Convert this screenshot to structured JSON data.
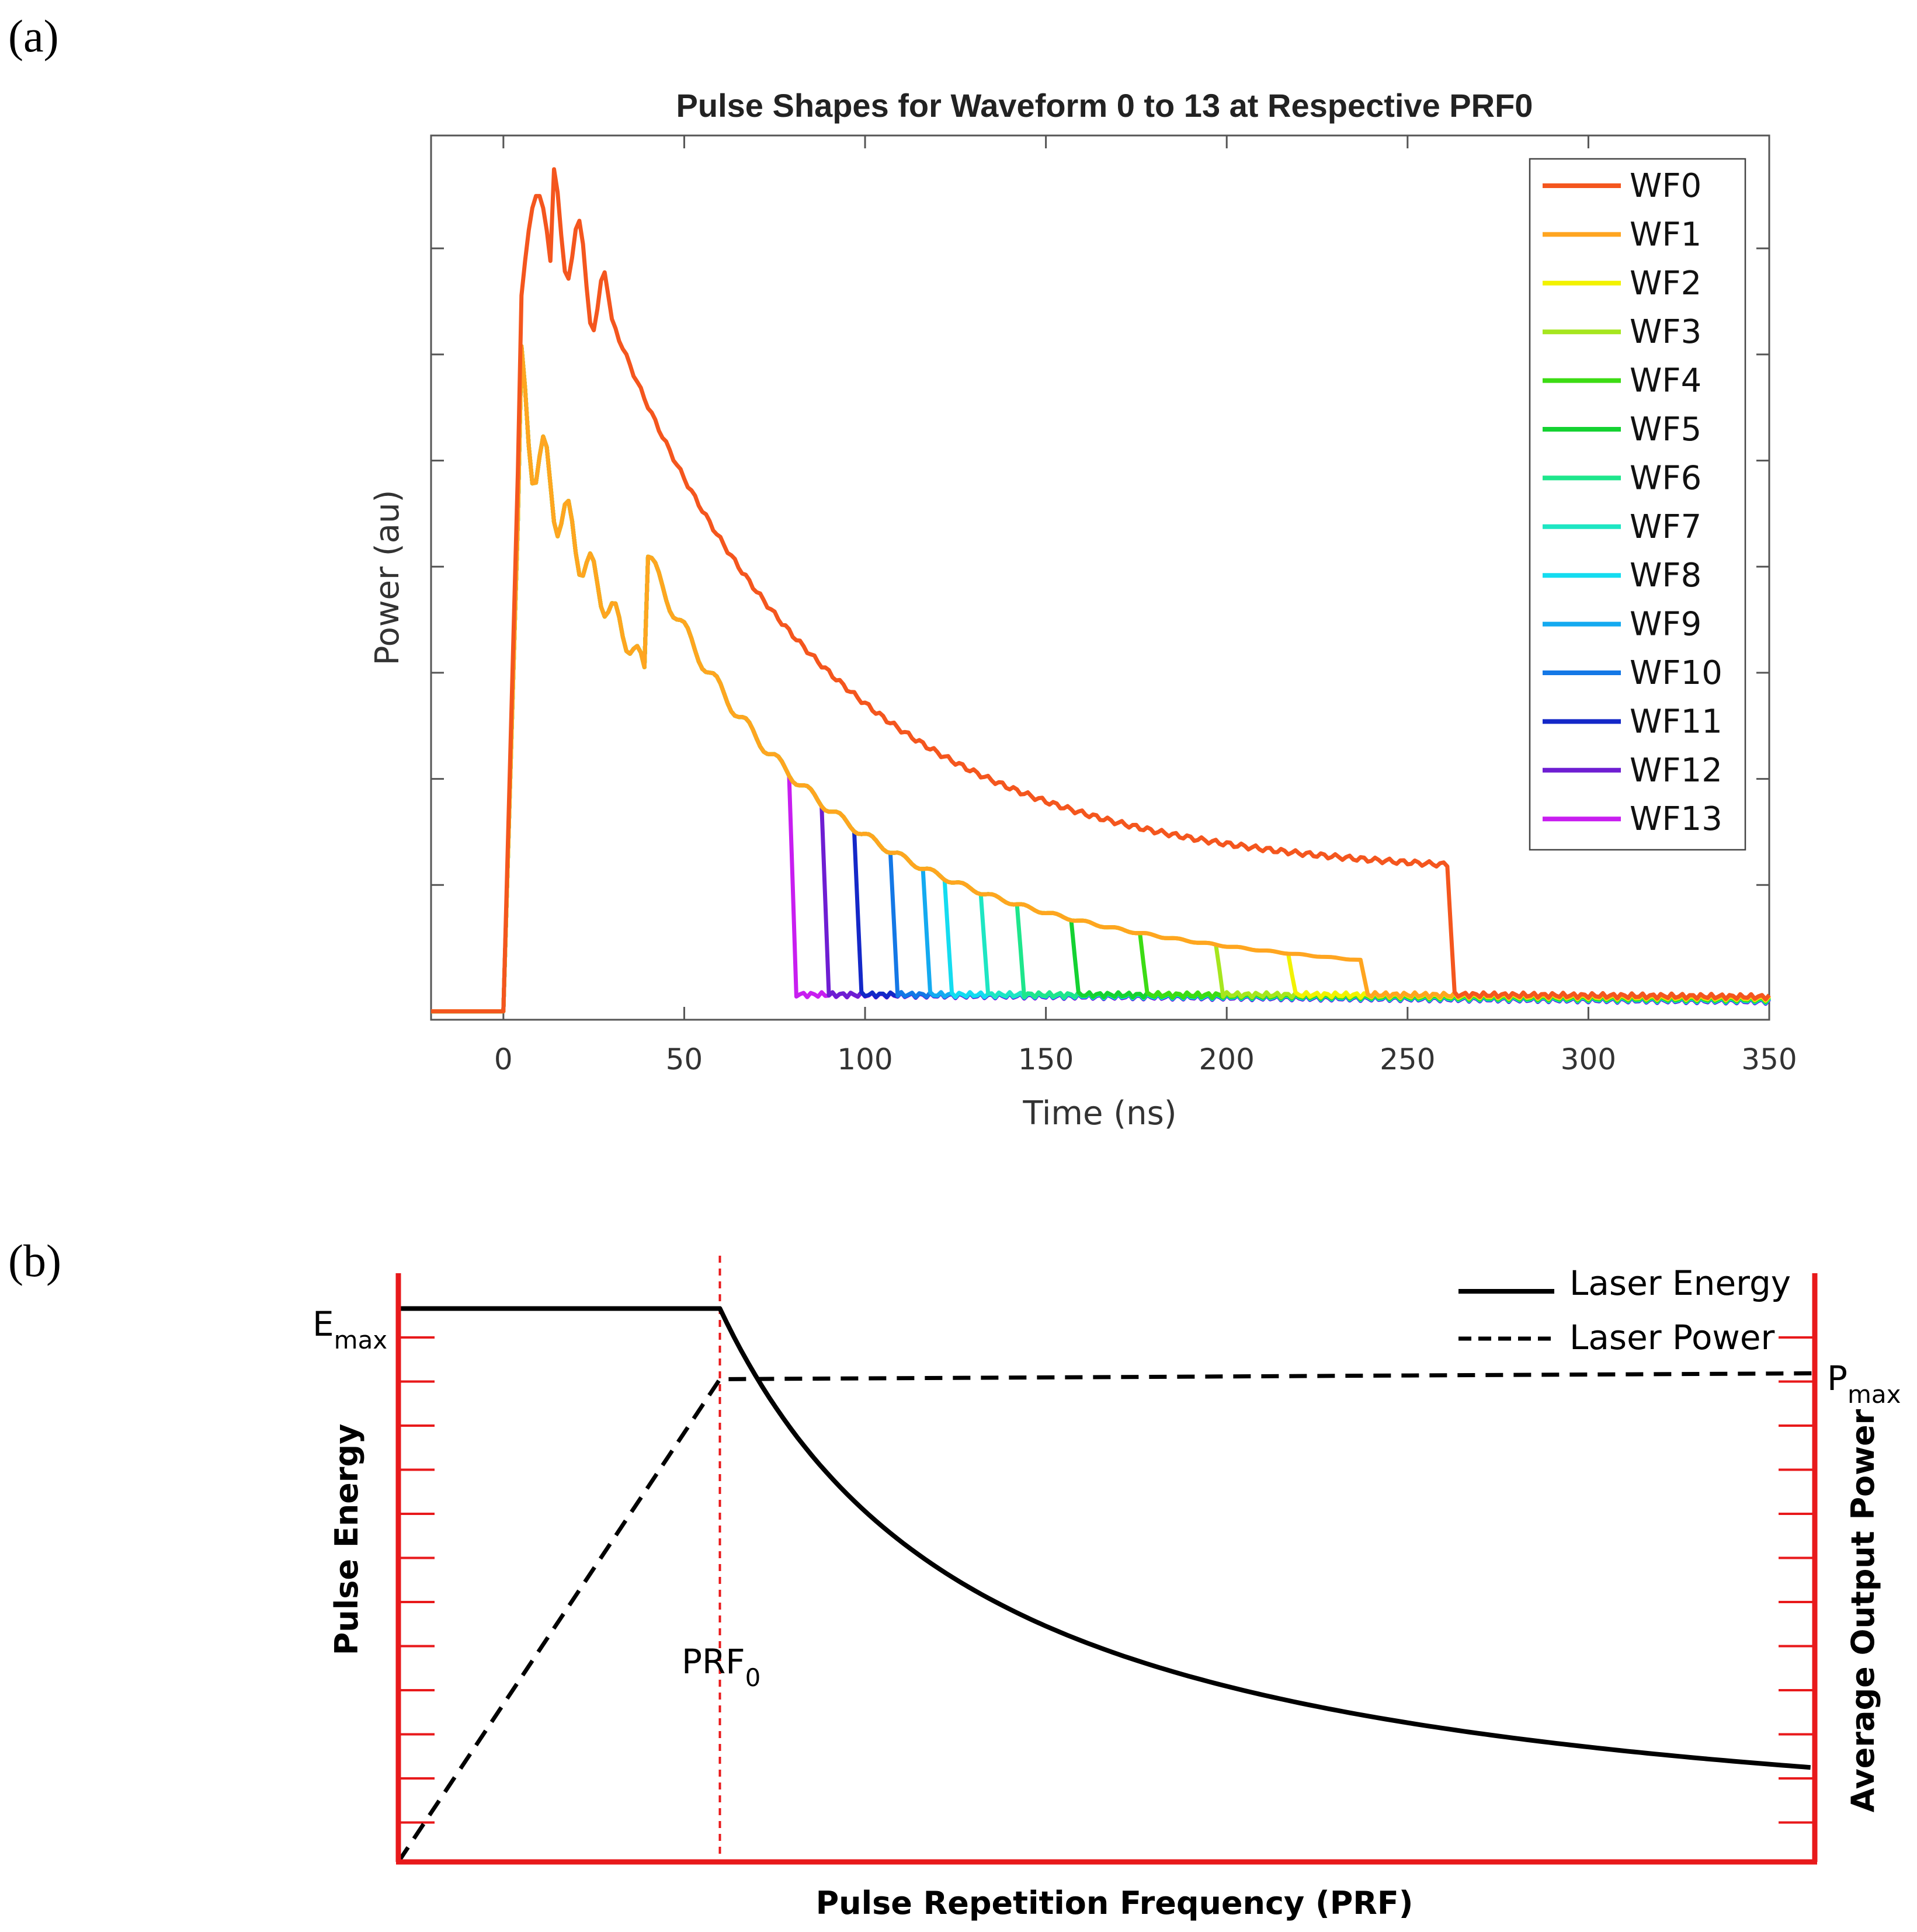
{
  "panel_a_label": "(a)",
  "panel_b_label": "(b)",
  "chart_data": [
    {
      "id": "a",
      "type": "line",
      "title": "Pulse Shapes for Waveform 0 to 13 at Respective PRF0",
      "xlabel": "Time (ns)",
      "ylabel": "Power (au)",
      "xlim": [
        -20,
        350
      ],
      "ylim": [
        0,
        1.05
      ],
      "x_ticks": [
        0,
        50,
        100,
        150,
        200,
        250,
        300,
        350
      ],
      "x_tick_labels": [
        "0",
        "50",
        "100",
        "150",
        "200",
        "250",
        "300",
        "350"
      ],
      "y_tick_values": [
        0.16,
        0.286,
        0.412,
        0.538,
        0.664,
        0.79,
        0.916
      ],
      "legend_position": "top-right",
      "series": [
        {
          "name": "WF0",
          "color": "#F4561E",
          "cutoff": 261
        },
        {
          "name": "WF1",
          "color": "#FFA520",
          "cutoff": 237
        },
        {
          "name": "WF2",
          "color": "#F2F200",
          "cutoff": 217
        },
        {
          "name": "WF3",
          "color": "#A6E61E",
          "cutoff": 197
        },
        {
          "name": "WF4",
          "color": "#3CDC14",
          "cutoff": 176
        },
        {
          "name": "WF5",
          "color": "#14D232",
          "cutoff": 157
        },
        {
          "name": "WF6",
          "color": "#1EE68C",
          "cutoff": 142
        },
        {
          "name": "WF7",
          "color": "#1EE6C3",
          "cutoff": 132
        },
        {
          "name": "WF8",
          "color": "#14DCF0",
          "cutoff": 122
        },
        {
          "name": "WF9",
          "color": "#14AAF0",
          "cutoff": 116
        },
        {
          "name": "WF10",
          "color": "#1478E6",
          "cutoff": 107
        },
        {
          "name": "WF11",
          "color": "#1428C8",
          "cutoff": 97
        },
        {
          "name": "WF12",
          "color": "#6E1ED2",
          "cutoff": 88
        },
        {
          "name": "WF13",
          "color": "#C81EF0",
          "cutoff": 79
        }
      ]
    },
    {
      "id": "b",
      "type": "line",
      "title": "",
      "xlabel": "Pulse Repetition Frequency (PRF)",
      "ylabel_left": "Pulse Energy",
      "ylabel_right": "Average Output Power",
      "xlim": [
        0,
        1
      ],
      "ylim": [
        0,
        1
      ],
      "prf0": 0.227,
      "emax": 0.94,
      "pmax": 0.83,
      "emax_main": "E",
      "emax_sub": "max",
      "pmax_main": "P",
      "pmax_sub": "max",
      "prf0_main": "PRF",
      "prf0_sub": "0",
      "legend_position": "top-right",
      "series": [
        {
          "name": "Laser Energy",
          "style": "solid",
          "color": "#000000",
          "x": [
            0,
            0.227,
            0.3,
            0.4,
            0.5,
            0.6,
            0.7,
            0.8,
            0.9,
            1.0
          ],
          "y": [
            0.94,
            0.94,
            0.67,
            0.46,
            0.35,
            0.28,
            0.22,
            0.16,
            0.12,
            0.09
          ]
        },
        {
          "name": "Laser Power",
          "style": "dashed",
          "color": "#000000",
          "x": [
            0,
            0.227,
            1.0
          ],
          "y": [
            0,
            0.82,
            0.83
          ]
        }
      ],
      "axis_color": "#E8191B"
    }
  ]
}
